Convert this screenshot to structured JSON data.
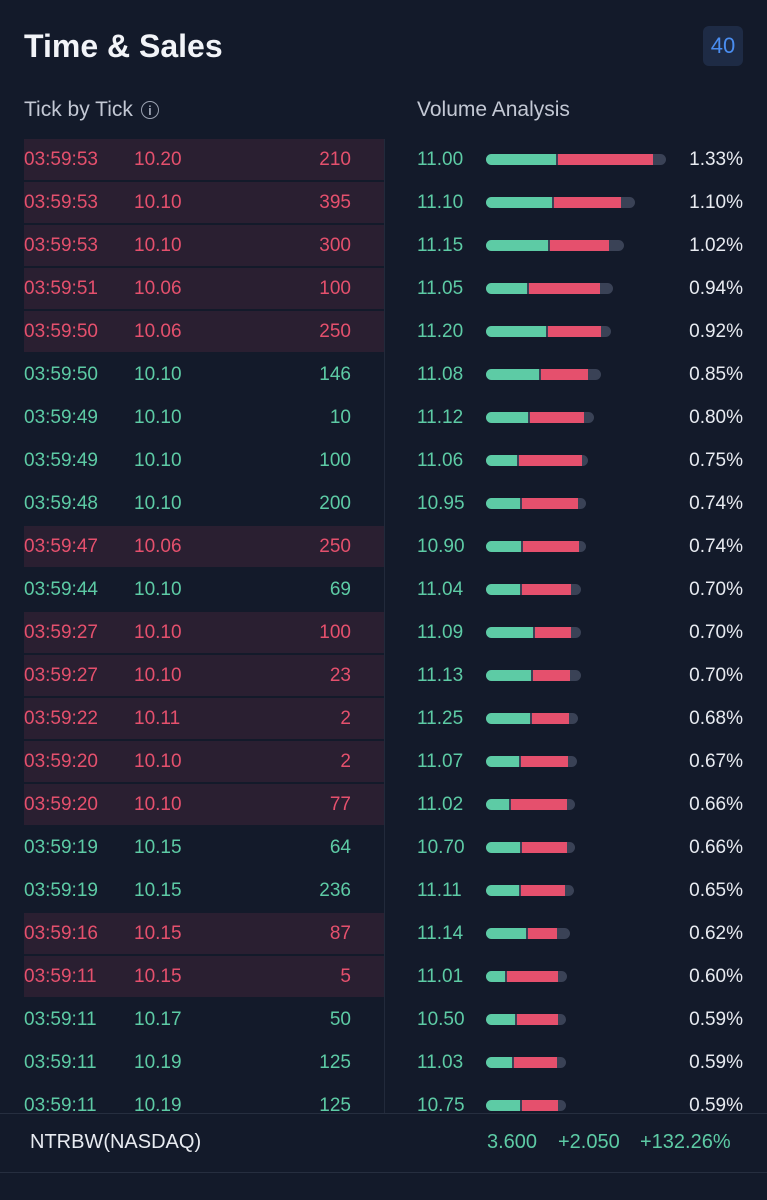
{
  "header": {
    "title": "Time & Sales",
    "badge": "40"
  },
  "sections": {
    "tick_label": "Tick by Tick",
    "info_glyph": "i",
    "volume_label": "Volume Analysis"
  },
  "colors": {
    "buy": "#5dcba5",
    "sell": "#e5506d",
    "sell_row_bg": "#2a1f31",
    "bar_track": "#3a4256",
    "background": "#131a2a"
  },
  "ticks": [
    {
      "time": "03:59:53",
      "price": "10.20",
      "vol": "210",
      "side": "sell"
    },
    {
      "time": "03:59:53",
      "price": "10.10",
      "vol": "395",
      "side": "sell"
    },
    {
      "time": "03:59:53",
      "price": "10.10",
      "vol": "300",
      "side": "sell"
    },
    {
      "time": "03:59:51",
      "price": "10.06",
      "vol": "100",
      "side": "sell"
    },
    {
      "time": "03:59:50",
      "price": "10.06",
      "vol": "250",
      "side": "sell"
    },
    {
      "time": "03:59:50",
      "price": "10.10",
      "vol": "146",
      "side": "buy"
    },
    {
      "time": "03:59:49",
      "price": "10.10",
      "vol": "10",
      "side": "buy"
    },
    {
      "time": "03:59:49",
      "price": "10.10",
      "vol": "100",
      "side": "buy"
    },
    {
      "time": "03:59:48",
      "price": "10.10",
      "vol": "200",
      "side": "buy"
    },
    {
      "time": "03:59:47",
      "price": "10.06",
      "vol": "250",
      "side": "sell"
    },
    {
      "time": "03:59:44",
      "price": "10.10",
      "vol": "69",
      "side": "buy"
    },
    {
      "time": "03:59:27",
      "price": "10.10",
      "vol": "100",
      "side": "sell"
    },
    {
      "time": "03:59:27",
      "price": "10.10",
      "vol": "23",
      "side": "sell"
    },
    {
      "time": "03:59:22",
      "price": "10.11",
      "vol": "2",
      "side": "sell"
    },
    {
      "time": "03:59:20",
      "price": "10.10",
      "vol": "2",
      "side": "sell"
    },
    {
      "time": "03:59:20",
      "price": "10.10",
      "vol": "77",
      "side": "sell"
    },
    {
      "time": "03:59:19",
      "price": "10.15",
      "vol": "64",
      "side": "buy"
    },
    {
      "time": "03:59:19",
      "price": "10.15",
      "vol": "236",
      "side": "buy"
    },
    {
      "time": "03:59:16",
      "price": "10.15",
      "vol": "87",
      "side": "sell"
    },
    {
      "time": "03:59:11",
      "price": "10.15",
      "vol": "5",
      "side": "sell"
    },
    {
      "time": "03:59:11",
      "price": "10.17",
      "vol": "50",
      "side": "buy"
    },
    {
      "time": "03:59:11",
      "price": "10.19",
      "vol": "125",
      "side": "buy"
    },
    {
      "time": "03:59:11",
      "price": "10.19",
      "vol": "125",
      "side": "buy"
    }
  ],
  "volume": [
    {
      "price": "11.00",
      "pct": "1.33%",
      "buy_share": 0.39,
      "sell_share": 0.53
    },
    {
      "price": "11.10",
      "pct": "1.10%",
      "buy_share": 0.44,
      "sell_share": 0.45
    },
    {
      "price": "11.15",
      "pct": "1.02%",
      "buy_share": 0.45,
      "sell_share": 0.43
    },
    {
      "price": "11.05",
      "pct": "0.94%",
      "buy_share": 0.32,
      "sell_share": 0.56
    },
    {
      "price": "11.20",
      "pct": "0.92%",
      "buy_share": 0.48,
      "sell_share": 0.42
    },
    {
      "price": "11.08",
      "pct": "0.85%",
      "buy_share": 0.46,
      "sell_share": 0.41
    },
    {
      "price": "11.12",
      "pct": "0.80%",
      "buy_share": 0.39,
      "sell_share": 0.5
    },
    {
      "price": "11.06",
      "pct": "0.75%",
      "buy_share": 0.3,
      "sell_share": 0.62
    },
    {
      "price": "10.95",
      "pct": "0.74%",
      "buy_share": 0.34,
      "sell_share": 0.56
    },
    {
      "price": "10.90",
      "pct": "0.74%",
      "buy_share": 0.35,
      "sell_share": 0.56
    },
    {
      "price": "11.04",
      "pct": "0.70%",
      "buy_share": 0.36,
      "sell_share": 0.52
    },
    {
      "price": "11.09",
      "pct": "0.70%",
      "buy_share": 0.49,
      "sell_share": 0.38
    },
    {
      "price": "11.13",
      "pct": "0.70%",
      "buy_share": 0.47,
      "sell_share": 0.39
    },
    {
      "price": "11.25",
      "pct": "0.68%",
      "buy_share": 0.48,
      "sell_share": 0.4
    },
    {
      "price": "11.07",
      "pct": "0.67%",
      "buy_share": 0.36,
      "sell_share": 0.52
    },
    {
      "price": "11.02",
      "pct": "0.66%",
      "buy_share": 0.26,
      "sell_share": 0.63
    },
    {
      "price": "10.70",
      "pct": "0.66%",
      "buy_share": 0.38,
      "sell_share": 0.51
    },
    {
      "price": "11.11",
      "pct": "0.65%",
      "buy_share": 0.38,
      "sell_share": 0.5
    },
    {
      "price": "11.14",
      "pct": "0.62%",
      "buy_share": 0.48,
      "sell_share": 0.34
    },
    {
      "price": "11.01",
      "pct": "0.60%",
      "buy_share": 0.24,
      "sell_share": 0.63
    },
    {
      "price": "10.50",
      "pct": "0.59%",
      "buy_share": 0.36,
      "sell_share": 0.51
    },
    {
      "price": "11.03",
      "pct": "0.59%",
      "buy_share": 0.33,
      "sell_share": 0.54
    },
    {
      "price": "10.75",
      "pct": "0.59%",
      "buy_share": 0.43,
      "sell_share": 0.45
    }
  ],
  "footer": {
    "symbol": "NTRBW(NASDAQ)",
    "price": "3.600",
    "change": "+2.050",
    "change_pct": "+132.26%"
  }
}
